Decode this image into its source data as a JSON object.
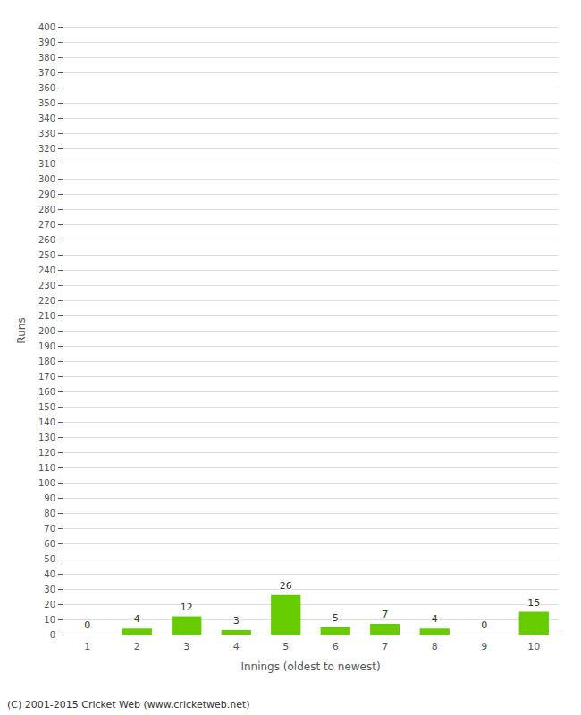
{
  "chart_data": {
    "type": "bar",
    "xlabel": "Innings (oldest to newest)",
    "ylabel": "Runs",
    "annotation": "(C) 2001-2015 Cricket Web (www.cricketweb.net)",
    "categories": [
      "1",
      "2",
      "3",
      "4",
      "5",
      "6",
      "7",
      "8",
      "9",
      "10"
    ],
    "values": [
      0,
      4,
      12,
      3,
      26,
      5,
      7,
      4,
      0,
      15
    ],
    "color": "#66cc00",
    "ylim": [
      0,
      400
    ],
    "yticks": [
      0,
      10,
      20,
      30,
      40,
      50,
      60,
      70,
      80,
      90,
      100,
      110,
      120,
      130,
      140,
      150,
      160,
      170,
      180,
      190,
      200,
      210,
      220,
      230,
      240,
      250,
      260,
      270,
      280,
      290,
      300,
      310,
      320,
      330,
      340,
      350,
      360,
      370,
      380,
      390,
      400
    ],
    "grid": true,
    "data_labels": true
  }
}
